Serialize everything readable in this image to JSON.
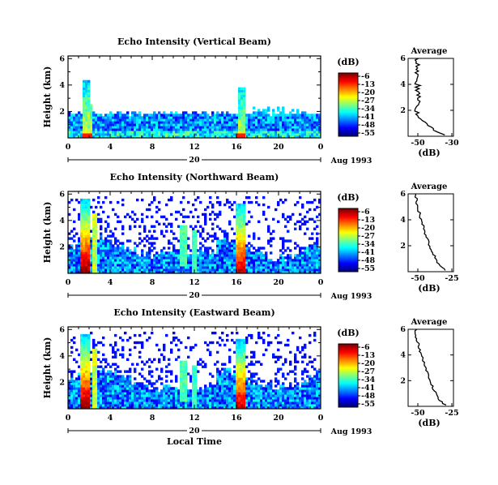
{
  "chart_data": [
    {
      "type": "heatmap",
      "title": "Echo Intensity (Vertical Beam)",
      "ylabel": "Height (km)",
      "xlabel": "",
      "x_ticks": [
        "0",
        "4",
        "8",
        "12",
        "16",
        "20",
        "0"
      ],
      "y_ticks": [
        "2",
        "4",
        "6"
      ],
      "date_marker": "20",
      "date_label": "Aug 1993",
      "colorbar": {
        "title": "(dB)",
        "ticks": [
          "-6",
          "-13",
          "-20",
          "-27",
          "-34",
          "-41",
          "-48",
          "-55"
        ]
      },
      "average": {
        "title": "Average",
        "xlabel": "(dB)",
        "x_ticks": [
          "-50",
          "-30"
        ],
        "y_ticks": [
          "2",
          "4",
          "6"
        ]
      }
    },
    {
      "type": "heatmap",
      "title": "Echo Intensity (Northward Beam)",
      "ylabel": "Height (km)",
      "xlabel": "",
      "x_ticks": [
        "0",
        "4",
        "8",
        "12",
        "16",
        "20",
        "0"
      ],
      "y_ticks": [
        "2",
        "4",
        "6"
      ],
      "date_marker": "20",
      "date_label": "Aug 1993",
      "colorbar": {
        "title": "(dB)",
        "ticks": [
          "-6",
          "-13",
          "-20",
          "-27",
          "-34",
          "-41",
          "-48",
          "-55"
        ]
      },
      "average": {
        "title": "Average",
        "xlabel": "(dB)",
        "x_ticks": [
          "-50",
          "-25"
        ],
        "y_ticks": [
          "2",
          "4",
          "6"
        ]
      }
    },
    {
      "type": "heatmap",
      "title": "Echo Intensity (Eastward Beam)",
      "ylabel": "Height (km)",
      "xlabel": "Local Time",
      "x_ticks": [
        "0",
        "4",
        "8",
        "12",
        "16",
        "20",
        "0"
      ],
      "y_ticks": [
        "2",
        "4",
        "6"
      ],
      "date_marker": "20",
      "date_label": "Aug 1993",
      "colorbar": {
        "title": "(dB)",
        "ticks": [
          "-6",
          "-13",
          "-20",
          "-27",
          "-34",
          "-41",
          "-48",
          "-55"
        ]
      },
      "average": {
        "title": "Average",
        "xlabel": "(dB)",
        "x_ticks": [
          "-50",
          "-25"
        ],
        "y_ticks": [
          "2",
          "4",
          "6"
        ]
      }
    }
  ]
}
